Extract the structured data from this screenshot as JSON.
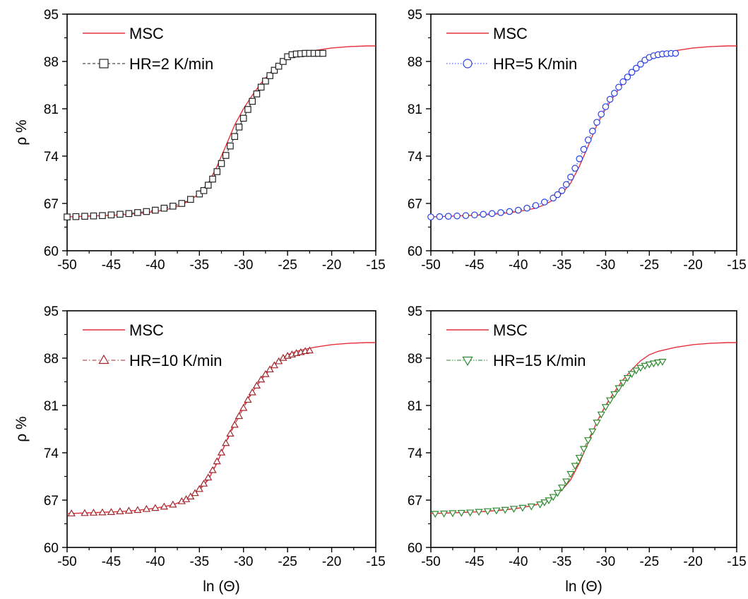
{
  "chart_data": [
    {
      "type": "line",
      "panel": "top-left",
      "xlabel": "",
      "ylabel": "ρ %",
      "xlim": [
        -50,
        -15
      ],
      "ylim": [
        60,
        95
      ],
      "xticks": [
        -50,
        -45,
        -40,
        -35,
        -30,
        -25,
        -20,
        -15
      ],
      "yticks": [
        60,
        67,
        74,
        81,
        88,
        95
      ],
      "grid": false,
      "legend_position": "top-left",
      "marker": "square",
      "marker_color": "#222222",
      "msc_color": "#e8303a",
      "x_end": -21,
      "series": [
        {
          "name": "MSC",
          "style": "solid"
        },
        {
          "name": "HR=2 K/min",
          "style": "dashed"
        }
      ],
      "msc_x": [
        -50,
        -48,
        -46,
        -44,
        -42,
        -40,
        -38,
        -37,
        -36,
        -35,
        -34,
        -33,
        -32,
        -31,
        -30,
        -29,
        -28,
        -27,
        -26,
        -25,
        -24,
        -23,
        -22,
        -21,
        -20,
        -19,
        -18,
        -17,
        -16,
        -15
      ],
      "msc_y": [
        65.0,
        65.1,
        65.2,
        65.3,
        65.5,
        65.8,
        66.3,
        66.8,
        67.5,
        68.5,
        70.0,
        72.5,
        75.5,
        78.6,
        81.0,
        83.0,
        84.8,
        86.3,
        87.6,
        88.5,
        89.0,
        89.3,
        89.6,
        89.8,
        90.0,
        90.1,
        90.2,
        90.25,
        90.3,
        90.3
      ],
      "data_x": [
        -50,
        -49,
        -48,
        -47,
        -46,
        -45,
        -44,
        -43,
        -42,
        -41,
        -40,
        -39,
        -38,
        -37,
        -36,
        -35,
        -34.5,
        -34,
        -33.5,
        -33,
        -32.5,
        -32,
        -31.5,
        -31,
        -30.5,
        -30,
        -29.5,
        -29,
        -28.5,
        -28,
        -27.5,
        -27,
        -26.5,
        -26,
        -25.5,
        -25,
        -24.5,
        -24,
        -23.5,
        -23,
        -22.5,
        -22,
        -21.5,
        -21
      ],
      "data_y": [
        65.0,
        65.05,
        65.1,
        65.15,
        65.2,
        65.3,
        65.4,
        65.5,
        65.65,
        65.8,
        66.0,
        66.3,
        66.6,
        67.0,
        67.6,
        68.4,
        68.9,
        69.7,
        70.6,
        71.7,
        72.9,
        74.1,
        75.5,
        76.9,
        78.3,
        79.6,
        80.9,
        82.1,
        83.2,
        84.2,
        85.1,
        85.9,
        86.7,
        87.3,
        88.0,
        88.7,
        89.0,
        89.1,
        89.15,
        89.2,
        89.2,
        89.2,
        89.2,
        89.2
      ]
    },
    {
      "type": "line",
      "panel": "top-right",
      "xlabel": "",
      "ylabel": "",
      "xlim": [
        -50,
        -15
      ],
      "ylim": [
        60,
        95
      ],
      "xticks": [
        -50,
        -45,
        -40,
        -35,
        -30,
        -25,
        -20,
        -15
      ],
      "yticks": [
        60,
        67,
        74,
        81,
        88,
        95
      ],
      "grid": false,
      "legend_position": "top-left",
      "marker": "circle",
      "marker_color": "#2a3fe0",
      "msc_color": "#e8303a",
      "x_end": -22,
      "series": [
        {
          "name": "MSC",
          "style": "solid"
        },
        {
          "name": "HR=5 K/min",
          "style": "dotted"
        }
      ],
      "msc_x": [
        -50,
        -48,
        -46,
        -44,
        -42,
        -40,
        -38,
        -37,
        -36,
        -35,
        -34,
        -33,
        -32,
        -31,
        -30,
        -29,
        -28,
        -27,
        -26,
        -25,
        -24,
        -23,
        -22,
        -21,
        -20,
        -19,
        -18,
        -17,
        -16,
        -15
      ],
      "msc_y": [
        65.0,
        65.1,
        65.2,
        65.3,
        65.5,
        65.8,
        66.3,
        66.8,
        67.5,
        68.5,
        70.0,
        72.5,
        75.5,
        78.6,
        81.0,
        83.0,
        84.8,
        86.3,
        87.6,
        88.5,
        89.0,
        89.3,
        89.6,
        89.8,
        90.0,
        90.1,
        90.2,
        90.25,
        90.3,
        90.3
      ],
      "data_x": [
        -50,
        -49,
        -48,
        -47,
        -46,
        -45,
        -44,
        -43,
        -42,
        -41,
        -40,
        -39,
        -38,
        -37,
        -36,
        -35.5,
        -35,
        -34.5,
        -34,
        -33.5,
        -33,
        -32.5,
        -32,
        -31.5,
        -31,
        -30.5,
        -30,
        -29.5,
        -29,
        -28.5,
        -28,
        -27.5,
        -27,
        -26.5,
        -26,
        -25.5,
        -25,
        -24.5,
        -24,
        -23.5,
        -23,
        -22.5,
        -22
      ],
      "data_y": [
        65.0,
        65.05,
        65.1,
        65.15,
        65.2,
        65.3,
        65.4,
        65.5,
        65.65,
        65.8,
        66.0,
        66.3,
        66.7,
        67.2,
        67.8,
        68.3,
        68.9,
        69.8,
        70.9,
        72.2,
        73.6,
        75.0,
        76.4,
        77.7,
        79.0,
        80.2,
        81.3,
        82.4,
        83.3,
        84.2,
        85.0,
        85.7,
        86.4,
        87.0,
        87.6,
        88.2,
        88.6,
        88.85,
        89.0,
        89.1,
        89.15,
        89.2,
        89.2
      ]
    },
    {
      "type": "line",
      "panel": "bottom-left",
      "xlabel": "ln (Θ)",
      "ylabel": "ρ %",
      "xlim": [
        -50,
        -15
      ],
      "ylim": [
        60,
        95
      ],
      "xticks": [
        -50,
        -45,
        -40,
        -35,
        -30,
        -25,
        -20,
        -15
      ],
      "yticks": [
        60,
        67,
        74,
        81,
        88,
        95
      ],
      "grid": false,
      "legend_position": "top-left",
      "marker": "triangle-up",
      "marker_color": "#a0282e",
      "msc_color": "#e8303a",
      "x_end": -22.5,
      "series": [
        {
          "name": "MSC",
          "style": "solid"
        },
        {
          "name": "HR=10 K/min",
          "style": "dashdot"
        }
      ],
      "msc_x": [
        -50,
        -48,
        -46,
        -44,
        -42,
        -40,
        -38,
        -37,
        -36,
        -35,
        -34,
        -33,
        -32,
        -31,
        -30,
        -29,
        -28,
        -27,
        -26,
        -25,
        -24,
        -23,
        -22,
        -21,
        -20,
        -19,
        -18,
        -17,
        -16,
        -15
      ],
      "msc_y": [
        65.0,
        65.1,
        65.2,
        65.3,
        65.5,
        65.8,
        66.3,
        66.8,
        67.5,
        68.5,
        70.0,
        72.5,
        75.5,
        78.6,
        81.0,
        83.0,
        84.8,
        86.3,
        87.6,
        88.5,
        89.0,
        89.3,
        89.6,
        89.8,
        90.0,
        90.1,
        90.2,
        90.25,
        90.3,
        90.3
      ],
      "data_x": [
        -49.5,
        -48,
        -47,
        -46,
        -45,
        -44,
        -43,
        -42,
        -41,
        -40,
        -39,
        -38,
        -37,
        -36.5,
        -36,
        -35.5,
        -35,
        -34.5,
        -34,
        -33.5,
        -33,
        -32.5,
        -32,
        -31.5,
        -31,
        -30.5,
        -30,
        -29.5,
        -29,
        -28.5,
        -28,
        -27.5,
        -27,
        -26.5,
        -26,
        -25.5,
        -25,
        -24.5,
        -24,
        -23.5,
        -23,
        -22.5
      ],
      "data_y": [
        65.0,
        65.05,
        65.1,
        65.15,
        65.2,
        65.3,
        65.4,
        65.5,
        65.65,
        65.8,
        66.0,
        66.3,
        66.8,
        67.1,
        67.5,
        68.0,
        68.6,
        69.4,
        70.3,
        71.4,
        72.7,
        74.0,
        75.4,
        76.8,
        78.1,
        79.4,
        80.6,
        81.8,
        82.9,
        83.9,
        84.8,
        85.6,
        86.3,
        86.9,
        87.5,
        88.0,
        88.3,
        88.5,
        88.7,
        88.85,
        89.0,
        89.1
      ]
    },
    {
      "type": "line",
      "panel": "bottom-right",
      "xlabel": "ln (Θ)",
      "ylabel": "",
      "xlim": [
        -50,
        -15
      ],
      "ylim": [
        60,
        95
      ],
      "xticks": [
        -50,
        -45,
        -40,
        -35,
        -30,
        -25,
        -20,
        -15
      ],
      "yticks": [
        60,
        67,
        74,
        81,
        88,
        95
      ],
      "grid": false,
      "legend_position": "top-left",
      "marker": "triangle-down",
      "marker_color": "#2e8a2e",
      "msc_color": "#e8303a",
      "x_end": -23.5,
      "series": [
        {
          "name": "MSC",
          "style": "solid"
        },
        {
          "name": "HR=15 K/min",
          "style": "dashdotdot"
        }
      ],
      "msc_x": [
        -50,
        -48,
        -46,
        -44,
        -42,
        -40,
        -38,
        -37,
        -36,
        -35,
        -34,
        -33,
        -32,
        -31,
        -30,
        -29,
        -28,
        -27,
        -26,
        -25,
        -24,
        -23,
        -22,
        -21,
        -20,
        -19,
        -18,
        -17,
        -16,
        -15
      ],
      "msc_y": [
        65.0,
        65.1,
        65.2,
        65.3,
        65.5,
        65.8,
        66.3,
        66.8,
        67.5,
        68.5,
        70.0,
        72.5,
        75.5,
        78.6,
        81.0,
        83.0,
        84.8,
        86.3,
        87.6,
        88.5,
        89.0,
        89.3,
        89.6,
        89.8,
        90.0,
        90.1,
        90.2,
        90.25,
        90.3,
        90.3
      ],
      "data_x": [
        -49.5,
        -48.5,
        -47.5,
        -46.5,
        -45.5,
        -44.5,
        -43.5,
        -42.5,
        -41.5,
        -40.5,
        -39.5,
        -38.5,
        -37.5,
        -37,
        -36.5,
        -36,
        -35.5,
        -35,
        -34.5,
        -34,
        -33.5,
        -33,
        -32.5,
        -32,
        -31.5,
        -31,
        -30.5,
        -30,
        -29.5,
        -29,
        -28.5,
        -28,
        -27.5,
        -27,
        -26.5,
        -26,
        -25.5,
        -25,
        -24.5,
        -24,
        -23.5
      ],
      "data_y": [
        65.0,
        65.05,
        65.1,
        65.15,
        65.2,
        65.3,
        65.4,
        65.5,
        65.6,
        65.75,
        65.9,
        66.1,
        66.4,
        66.7,
        67.0,
        67.5,
        68.1,
        68.9,
        69.8,
        70.9,
        72.1,
        73.3,
        74.6,
        75.9,
        77.2,
        78.5,
        79.7,
        80.8,
        81.8,
        82.7,
        83.6,
        84.4,
        85.1,
        85.7,
        86.2,
        86.6,
        86.9,
        87.1,
        87.25,
        87.4,
        87.5
      ]
    }
  ]
}
